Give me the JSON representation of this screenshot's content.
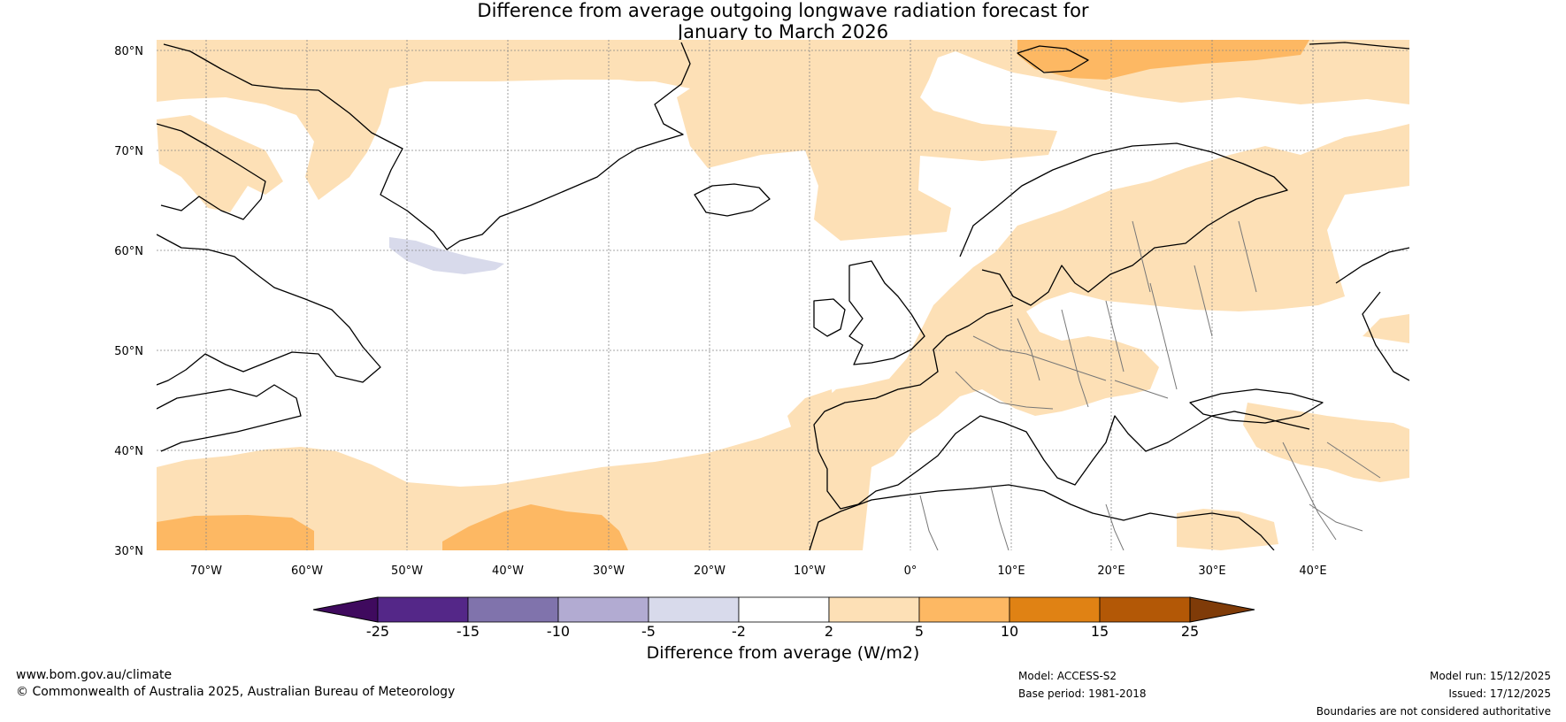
{
  "title": {
    "line1": "Difference from average outgoing longwave radiation forecast for",
    "line2": "January to March 2026"
  },
  "map": {
    "lat_labels": [
      "80°N",
      "70°N",
      "60°N",
      "50°N",
      "40°N",
      "30°N"
    ],
    "lon_labels": [
      "70°W",
      "60°W",
      "50°W",
      "40°W",
      "30°W",
      "20°W",
      "10°W",
      "0°",
      "10°E",
      "20°E",
      "30°E",
      "40°E"
    ],
    "colors": {
      "pos_2_5": "#fde0b6",
      "pos_5_10": "#fdb863",
      "neg_2_5": "#d8daeb",
      "land_outline": "#000000",
      "border": "#777777"
    }
  },
  "colorbar": {
    "ticks": [
      "-25",
      "-15",
      "-10",
      "-5",
      "-2",
      "2",
      "5",
      "10",
      "15",
      "25"
    ],
    "colors": [
      "#3f0a5e",
      "#542788",
      "#8073ac",
      "#b2abd2",
      "#d8daeb",
      "#ffffff",
      "#fde0b6",
      "#fdb863",
      "#e08214",
      "#b35806",
      "#7f3b08"
    ],
    "label": "Difference from average (W/m2)"
  },
  "footer": {
    "website": "www.bom.gov.au/climate",
    "copyright": "© Commonwealth of Australia 2025, Australian Bureau of Meteorology",
    "model": "Model: ACCESS-S2",
    "base_period": "Base period: 1981-2018",
    "model_run": "Model run: 15/12/2025",
    "issued": "Issued: 17/12/2025",
    "disclaimer": "Boundaries are not considered authoritative"
  }
}
